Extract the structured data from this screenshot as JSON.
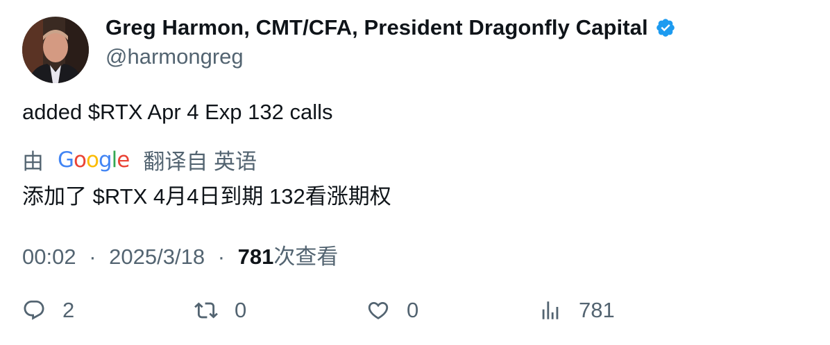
{
  "author": {
    "name": "Greg Harmon, CMT/CFA, President Dragonfly Capital",
    "handle": "@harmongreg",
    "verified": true,
    "verified_color": "#1d9bf0"
  },
  "tweet": {
    "text": "added $RTX Apr 4 Exp 132 calls"
  },
  "translation": {
    "prefix": "由",
    "provider": "Google",
    "suffix": "翻译自 英语",
    "text": "添加了 $RTX 4月4日到期 132看涨期权"
  },
  "meta": {
    "time": "00:02",
    "separator": "·",
    "date": "2025/3/18",
    "views": "781",
    "views_label": "次查看"
  },
  "actions": {
    "reply_count": "2",
    "retweet_count": "0",
    "like_count": "0",
    "view_count": "781"
  }
}
